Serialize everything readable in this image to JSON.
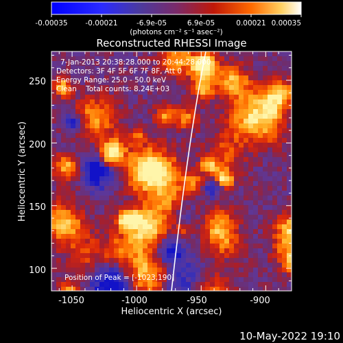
{
  "colorbar": {
    "tick_labels": [
      "-0.00035",
      "-0.00021",
      "-6.9e-05",
      "6.9e-05",
      "0.00021",
      "0.00035"
    ],
    "units_label": "(photons cm⁻² s⁻¹ asec⁻²)",
    "range": [
      -0.00035,
      0.00035
    ]
  },
  "image": {
    "title": "Reconstructed RHESSI Image",
    "info_lines": [
      "7-Jan-2013 20:38:28.000 to 20:44:28.000",
      "Detectors: 3F 4F 5F 6F 7F 8F, Att 0",
      "Energy Range: 25.0 - 50.0 keV",
      "Clean    Total counts: 8.24E+03"
    ],
    "peak_label": "Position of Peak = [-1023,190]",
    "xlabel": "Heliocentric X (arcsec)",
    "ylabel": "Heliocentric Y (arcsec)",
    "x_ticks": [
      "-1050",
      "-1000",
      "-950",
      "-900"
    ],
    "x_tick_values": [
      -1050,
      -1000,
      -950,
      -900
    ],
    "y_ticks": [
      "100",
      "150",
      "200",
      "250"
    ],
    "y_tick_values": [
      100,
      150,
      200,
      250
    ],
    "xlim": [
      -1066,
      -880
    ],
    "ylim": [
      82,
      273
    ]
  },
  "footer": {
    "timestamp": "10-May-2022 19:10"
  },
  "colors": {
    "background": "#000000",
    "negative_deep": "#1a1aff",
    "negative": "#5a3aa0",
    "neutral": "#7a3a7a",
    "positive": "#d02010",
    "hot": "#ff9a00",
    "peak": "#ffffb0"
  }
}
